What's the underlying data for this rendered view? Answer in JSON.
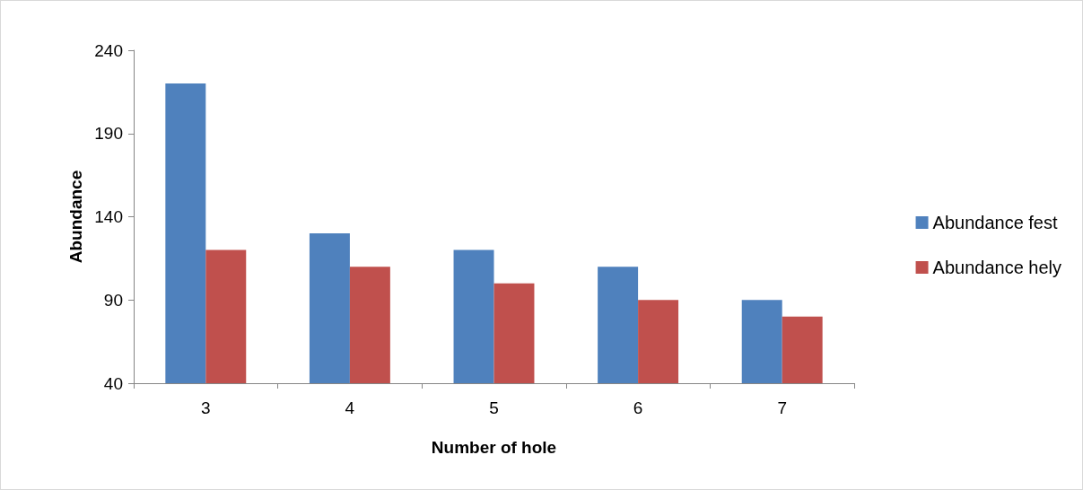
{
  "chart_data": {
    "type": "bar",
    "xlabel": "Number of hole",
    "ylabel": "Abundance",
    "categories": [
      "3",
      "4",
      "5",
      "6",
      "7"
    ],
    "series": [
      {
        "name": "Abundance fest",
        "color": "#4f81bd",
        "values": [
          220,
          130,
          120,
          110,
          90
        ]
      },
      {
        "name": "Abundance hely",
        "color": "#c0504d",
        "values": [
          120,
          110,
          100,
          90,
          80
        ]
      }
    ],
    "ylim": [
      40,
      240
    ],
    "yticks": [
      40,
      90,
      140,
      190,
      240
    ],
    "grid": false,
    "legend": "right"
  }
}
